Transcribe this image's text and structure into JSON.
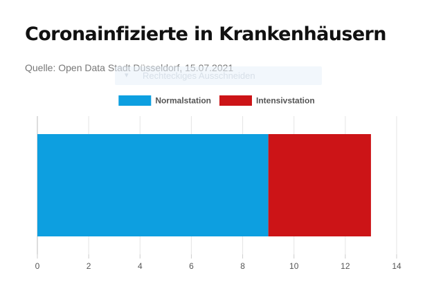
{
  "header": {
    "title": "Coronainfizierte in Krankenhäusern",
    "source": "Quelle: Open Data Stadt Düsseldorf, 15.07.2021"
  },
  "overlay": {
    "ghost_label": "Rechteckiges Ausschneiden",
    "ghost_icon": "chevron-down-icon"
  },
  "chart_data": {
    "type": "bar",
    "orientation": "horizontal",
    "stacked": true,
    "categories": [
      ""
    ],
    "series": [
      {
        "name": "Normalstation",
        "color": "#0d9fe0",
        "values": [
          9
        ]
      },
      {
        "name": "Intensivstation",
        "color": "#cc1417",
        "values": [
          4
        ]
      }
    ],
    "xlim": [
      0,
      14
    ],
    "xticks": [
      "0",
      "2",
      "4",
      "6",
      "8",
      "10",
      "12",
      "14"
    ],
    "grid": true,
    "legend_position": "top-center"
  }
}
